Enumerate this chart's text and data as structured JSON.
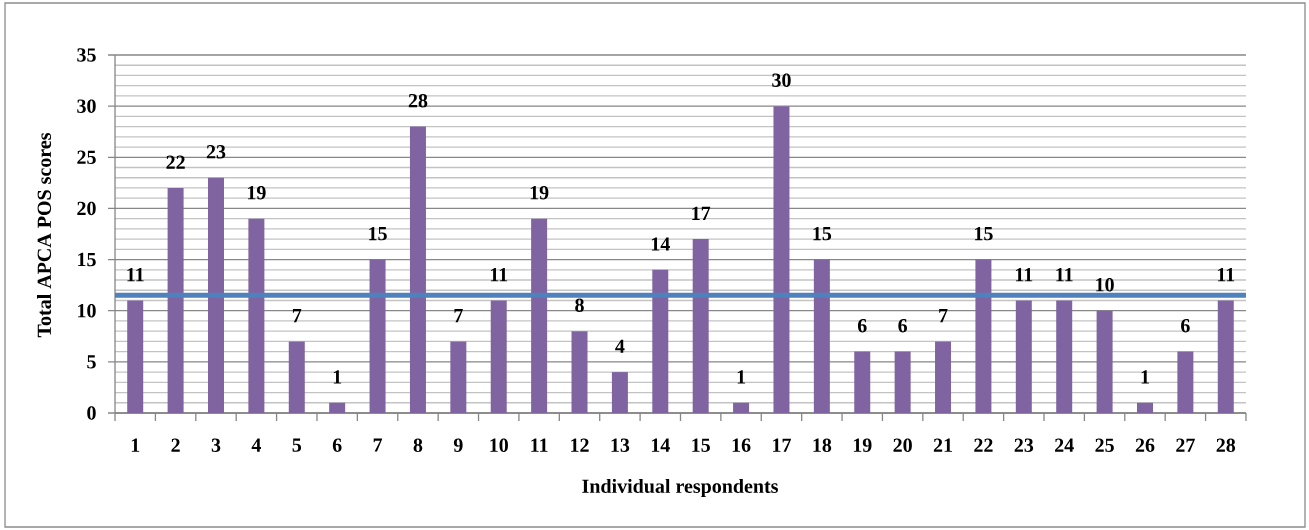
{
  "chart_data": {
    "type": "bar",
    "xlabel": "Individual respondents",
    "ylabel": "Total APCA POS scores",
    "categories": [
      "1",
      "2",
      "3",
      "4",
      "5",
      "6",
      "7",
      "8",
      "9",
      "10",
      "11",
      "12",
      "13",
      "14",
      "15",
      "16",
      "17",
      "18",
      "19",
      "20",
      "21",
      "22",
      "23",
      "24",
      "25",
      "26",
      "27",
      "28"
    ],
    "values": [
      11,
      22,
      23,
      19,
      7,
      1,
      15,
      28,
      7,
      11,
      19,
      8,
      4,
      14,
      17,
      1,
      30,
      15,
      6,
      6,
      7,
      15,
      11,
      11,
      10,
      1,
      6,
      11
    ],
    "color": "#8064a2",
    "ylim": [
      0,
      35
    ],
    "yticks": [
      0,
      {
        "value": 1,
        "label": null
      },
      {
        "value": 2,
        "label": null
      },
      {
        "value": 3,
        "label": null
      },
      {
        "value": 4,
        "label": null
      },
      5,
      {
        "value": 6,
        "label": null
      },
      {
        "value": 7,
        "label": null
      },
      {
        "value": 8,
        "label": null
      },
      {
        "value": 9,
        "label": null
      },
      10,
      {
        "value": 11,
        "label": null
      },
      {
        "value": 12,
        "label": null
      },
      {
        "value": 13,
        "label": null
      },
      {
        "value": 14,
        "label": null
      },
      15,
      {
        "value": 16,
        "label": null
      },
      {
        "value": 17,
        "label": null
      },
      {
        "value": 18,
        "label": null
      },
      {
        "value": 19,
        "label": null
      },
      20,
      {
        "value": 21,
        "label": null
      },
      {
        "value": 22,
        "label": null
      },
      {
        "value": 23,
        "label": null
      },
      {
        "value": 24,
        "label": null
      },
      25,
      {
        "value": 26,
        "label": null
      },
      {
        "value": 27,
        "label": null
      },
      {
        "value": 28,
        "label": null
      },
      {
        "value": 29,
        "label": null
      },
      30,
      {
        "value": 31,
        "label": null
      },
      {
        "value": 32,
        "label": null
      },
      {
        "value": 33,
        "label": null
      },
      {
        "value": 34,
        "label": null
      },
      35
    ],
    "grid": "y",
    "data_labels": true,
    "ref_lines": [
      {
        "axis": "y",
        "value": 11.5,
        "color": "#4f81bd"
      }
    ]
  }
}
